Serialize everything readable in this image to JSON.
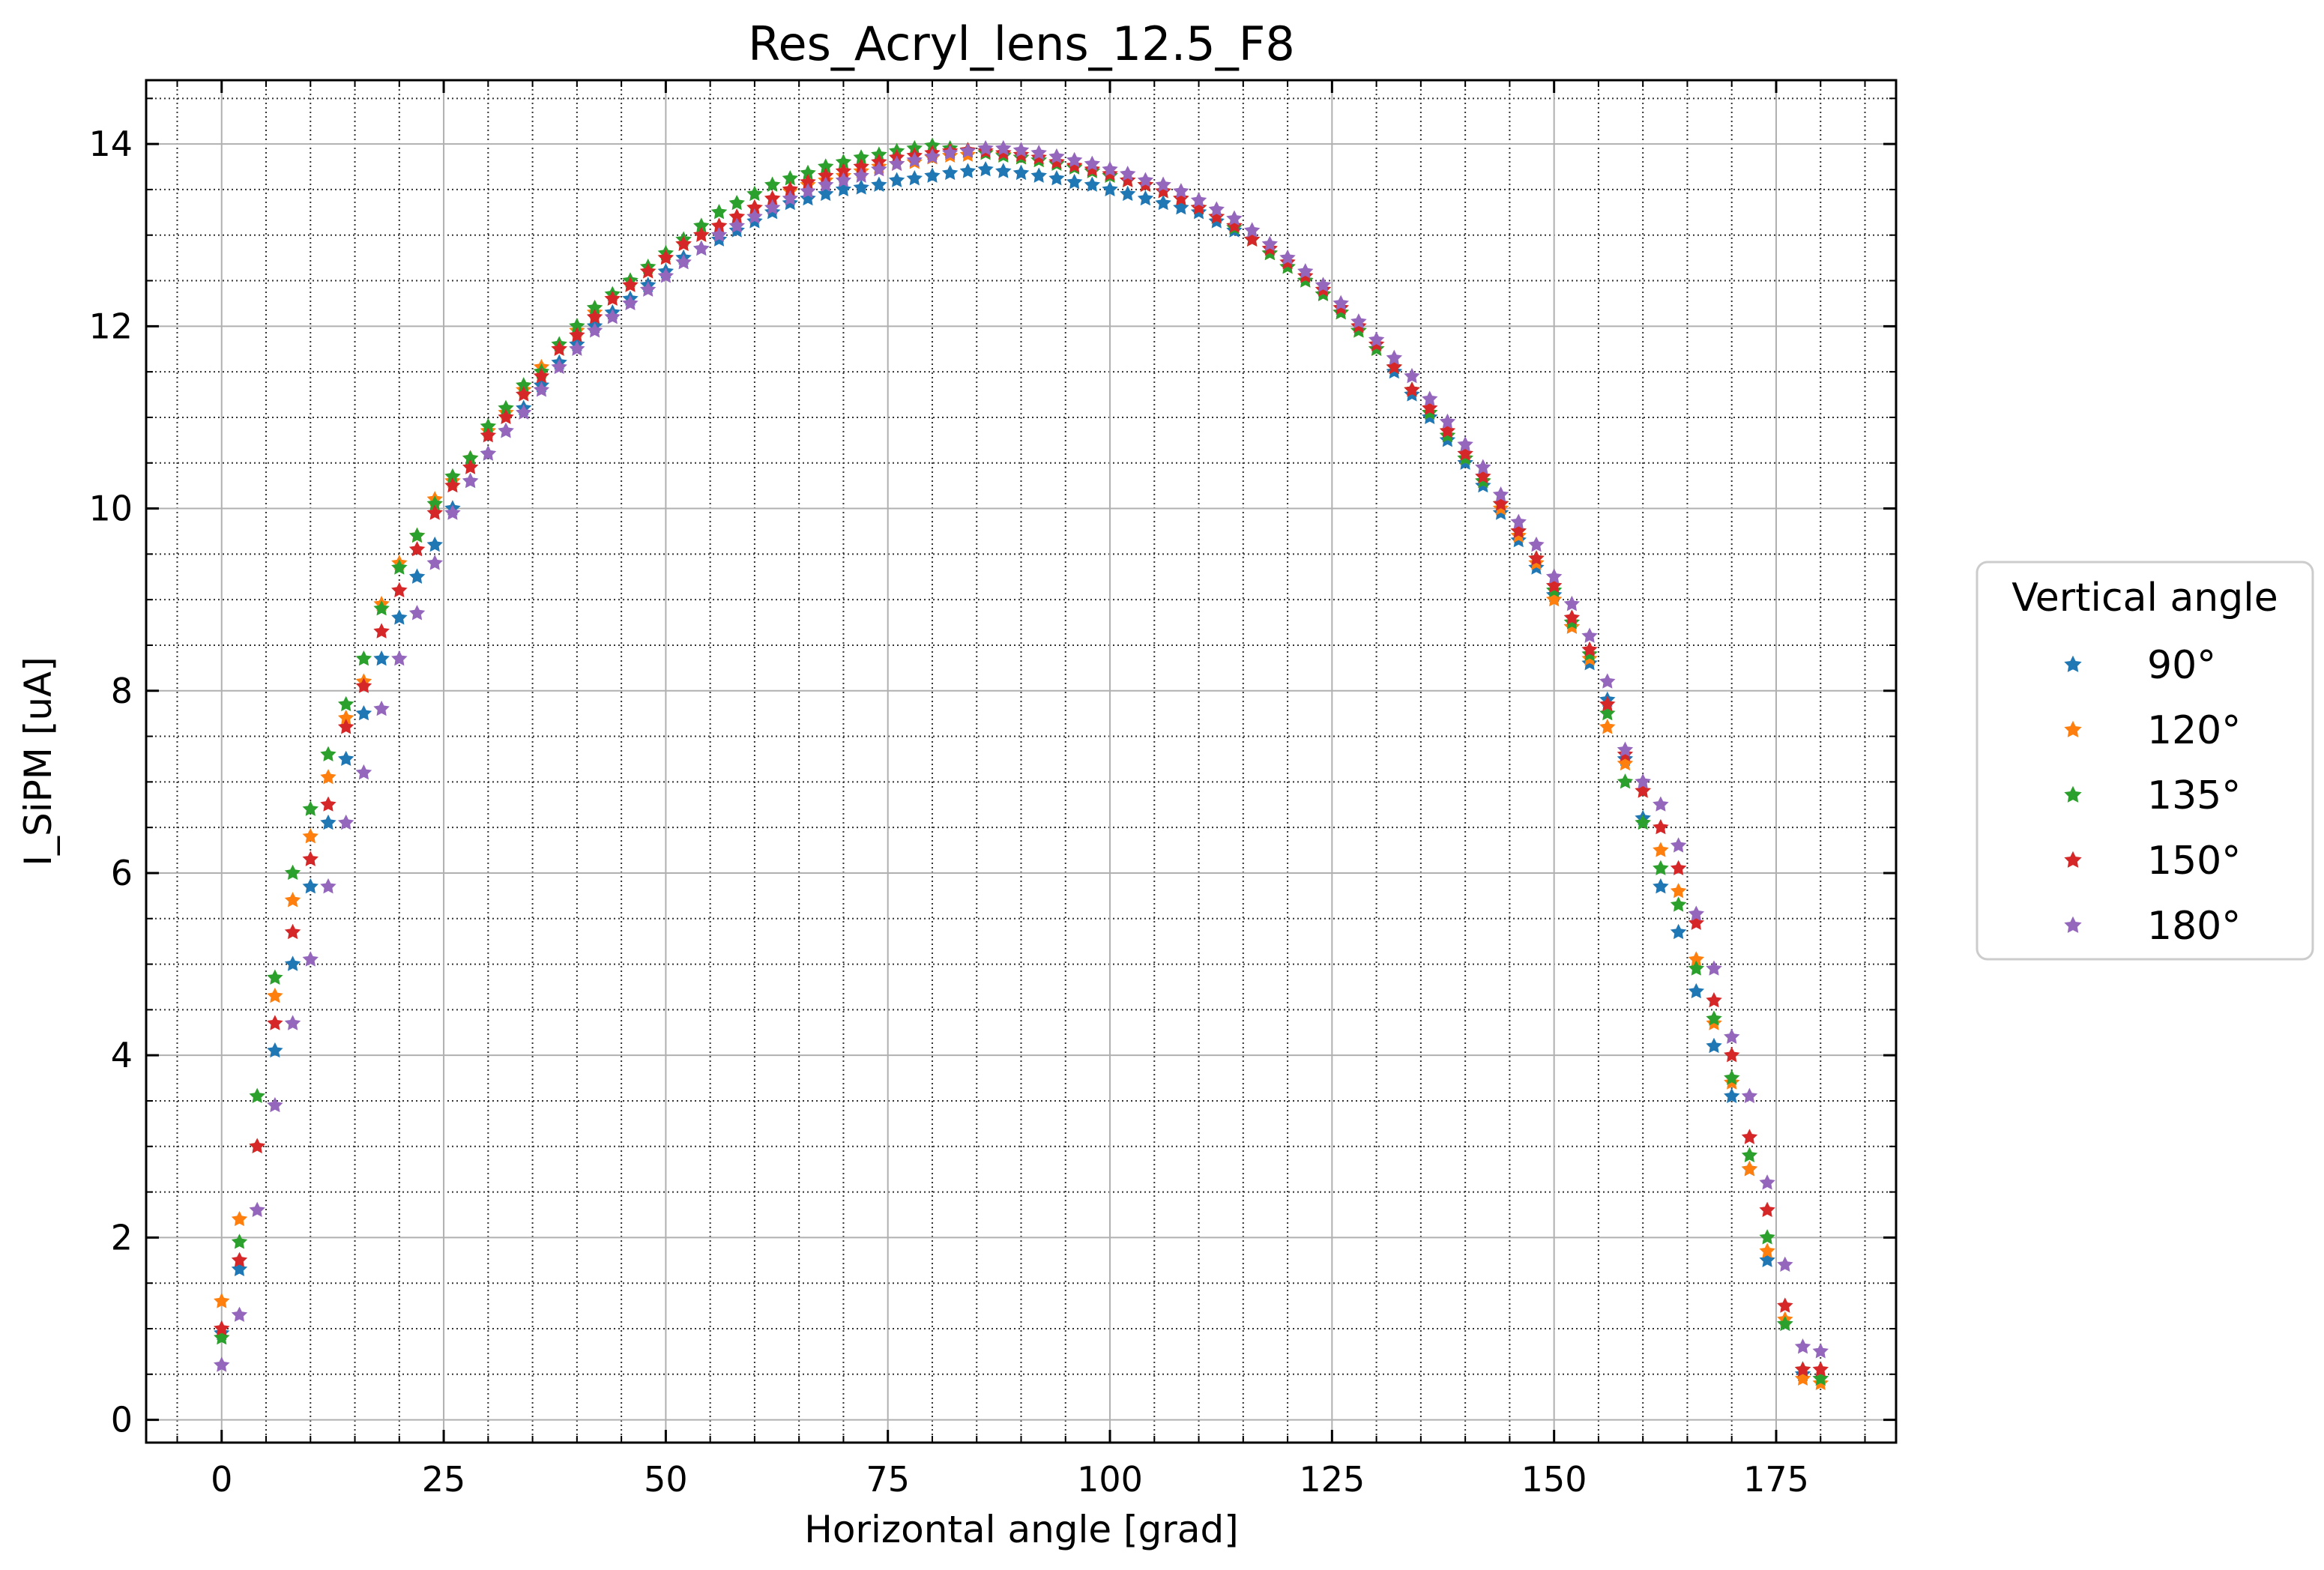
{
  "chart_data": {
    "type": "scatter",
    "title": "Res_Acryl_lens_12.5_F8",
    "xlabel": "Horizontal angle [grad]",
    "ylabel": "I_SiPM [uA]",
    "xlim": [
      -8.5,
      188.5
    ],
    "ylim": [
      -0.25,
      14.7
    ],
    "xticks": [
      0,
      25,
      50,
      75,
      100,
      125,
      150,
      175
    ],
    "yticks": [
      0,
      2,
      4,
      6,
      8,
      10,
      12,
      14
    ],
    "grid": true,
    "legend": {
      "title": "Vertical angle",
      "placement": "center-right"
    },
    "x": [
      0,
      2,
      4,
      6,
      8,
      10,
      12,
      14,
      16,
      18,
      20,
      22,
      24,
      26,
      28,
      30,
      32,
      34,
      36,
      38,
      40,
      42,
      44,
      46,
      48,
      50,
      52,
      54,
      56,
      58,
      60,
      62,
      64,
      66,
      68,
      70,
      72,
      74,
      76,
      78,
      80,
      82,
      84,
      86,
      88,
      90,
      92,
      94,
      96,
      98,
      100,
      102,
      104,
      106,
      108,
      110,
      112,
      114,
      116,
      118,
      120,
      122,
      124,
      126,
      128,
      130,
      132,
      134,
      136,
      138,
      140,
      142,
      144,
      146,
      148,
      150,
      152,
      154,
      156,
      158,
      160,
      162,
      164,
      166,
      168,
      170,
      172,
      174,
      176,
      178,
      180
    ],
    "series": [
      {
        "name": "90°",
        "color": "#1f77b4",
        "values": [
          0.95,
          1.65,
          3.0,
          4.05,
          5.0,
          5.85,
          6.55,
          7.25,
          7.75,
          8.35,
          8.8,
          9.25,
          9.6,
          10.0,
          10.3,
          10.6,
          10.85,
          11.1,
          11.35,
          11.6,
          11.8,
          12.0,
          12.15,
          12.3,
          12.45,
          12.6,
          12.75,
          12.85,
          12.95,
          13.05,
          13.15,
          13.25,
          13.35,
          13.4,
          13.45,
          13.5,
          13.52,
          13.55,
          13.6,
          13.62,
          13.65,
          13.68,
          13.7,
          13.72,
          13.7,
          13.68,
          13.65,
          13.62,
          13.58,
          13.55,
          13.5,
          13.45,
          13.4,
          13.35,
          13.3,
          13.25,
          13.15,
          13.05,
          12.95,
          12.8,
          12.65,
          12.5,
          12.35,
          12.15,
          11.95,
          11.75,
          11.5,
          11.25,
          11.0,
          10.75,
          10.5,
          10.25,
          9.95,
          9.65,
          9.35,
          9.05,
          8.7,
          8.3,
          7.9,
          7.25,
          6.6,
          5.85,
          5.35,
          4.7,
          4.1,
          3.55,
          2.75,
          1.75,
          1.05,
          0.5,
          0.45
        ]
      },
      {
        "name": "120°",
        "color": "#ff7f0e",
        "values": [
          1.3,
          2.2,
          3.0,
          4.65,
          5.7,
          6.4,
          7.05,
          7.7,
          8.1,
          8.95,
          9.4,
          9.7,
          10.1,
          10.3,
          10.55,
          10.85,
          11.05,
          11.3,
          11.55,
          11.75,
          11.95,
          12.15,
          12.3,
          12.45,
          12.6,
          12.75,
          12.9,
          13.0,
          13.1,
          13.2,
          13.3,
          13.4,
          13.48,
          13.55,
          13.6,
          13.65,
          13.7,
          13.75,
          13.78,
          13.8,
          13.85,
          13.87,
          13.88,
          13.9,
          13.88,
          13.85,
          13.82,
          13.8,
          13.75,
          13.7,
          13.65,
          13.6,
          13.55,
          13.48,
          13.4,
          13.3,
          13.2,
          13.1,
          12.95,
          12.8,
          12.65,
          12.5,
          12.35,
          12.15,
          11.95,
          11.75,
          11.55,
          11.3,
          11.05,
          10.8,
          10.55,
          10.3,
          10.0,
          9.7,
          9.4,
          9.0,
          8.7,
          8.35,
          7.6,
          7.2,
          6.9,
          6.25,
          5.8,
          5.05,
          4.35,
          3.7,
          2.75,
          1.85,
          1.1,
          0.45,
          0.4
        ]
      },
      {
        "name": "135°",
        "color": "#2ca02c",
        "values": [
          0.9,
          1.95,
          3.55,
          4.85,
          6.0,
          6.7,
          7.3,
          7.85,
          8.35,
          8.9,
          9.35,
          9.7,
          10.05,
          10.35,
          10.55,
          10.9,
          11.1,
          11.35,
          11.5,
          11.8,
          12.0,
          12.2,
          12.35,
          12.5,
          12.65,
          12.8,
          12.95,
          13.1,
          13.25,
          13.35,
          13.45,
          13.55,
          13.62,
          13.68,
          13.75,
          13.8,
          13.85,
          13.88,
          13.92,
          13.95,
          13.98,
          13.95,
          13.93,
          13.9,
          13.87,
          13.85,
          13.82,
          13.78,
          13.74,
          13.7,
          13.65,
          13.6,
          13.55,
          13.48,
          13.4,
          13.3,
          13.2,
          13.08,
          12.95,
          12.8,
          12.65,
          12.5,
          12.35,
          12.15,
          11.95,
          11.75,
          11.55,
          11.3,
          11.05,
          10.8,
          10.55,
          10.3,
          10.05,
          9.75,
          9.45,
          9.1,
          8.75,
          8.4,
          7.75,
          7.0,
          6.55,
          6.05,
          5.65,
          4.95,
          4.4,
          3.75,
          2.9,
          2.0,
          1.05,
          0.55,
          0.45
        ]
      },
      {
        "name": "150°",
        "color": "#d62728",
        "values": [
          1.0,
          1.75,
          3.0,
          4.35,
          5.35,
          6.15,
          6.75,
          7.6,
          8.05,
          8.65,
          9.1,
          9.55,
          9.95,
          10.25,
          10.45,
          10.8,
          11.0,
          11.25,
          11.45,
          11.75,
          11.9,
          12.1,
          12.3,
          12.45,
          12.6,
          12.75,
          12.9,
          13.0,
          13.1,
          13.2,
          13.3,
          13.4,
          13.5,
          13.58,
          13.65,
          13.7,
          13.75,
          13.8,
          13.85,
          13.87,
          13.9,
          13.92,
          13.93,
          13.92,
          13.9,
          13.88,
          13.85,
          13.8,
          13.76,
          13.72,
          13.67,
          13.6,
          13.55,
          13.48,
          13.4,
          13.3,
          13.2,
          13.1,
          12.95,
          12.85,
          12.7,
          12.55,
          12.4,
          12.2,
          12.0,
          11.8,
          11.55,
          11.3,
          11.1,
          10.85,
          10.6,
          10.35,
          10.05,
          9.75,
          9.45,
          9.15,
          8.8,
          8.45,
          7.85,
          7.3,
          6.9,
          6.5,
          6.05,
          5.45,
          4.6,
          4.0,
          3.1,
          2.3,
          1.25,
          0.55,
          0.55
        ]
      },
      {
        "name": "180°",
        "color": "#9467bd",
        "values": [
          0.6,
          1.15,
          2.3,
          3.45,
          4.35,
          5.05,
          5.85,
          6.55,
          7.1,
          7.8,
          8.35,
          8.85,
          9.4,
          9.95,
          10.3,
          10.6,
          10.85,
          11.05,
          11.3,
          11.55,
          11.75,
          11.95,
          12.1,
          12.25,
          12.4,
          12.55,
          12.7,
          12.85,
          13.0,
          13.1,
          13.2,
          13.3,
          13.4,
          13.48,
          13.55,
          13.6,
          13.65,
          13.72,
          13.78,
          13.82,
          13.86,
          13.9,
          13.92,
          13.95,
          13.95,
          13.93,
          13.9,
          13.86,
          13.82,
          13.78,
          13.72,
          13.67,
          13.6,
          13.55,
          13.48,
          13.38,
          13.28,
          13.18,
          13.05,
          12.9,
          12.75,
          12.6,
          12.45,
          12.25,
          12.05,
          11.85,
          11.65,
          11.45,
          11.2,
          10.95,
          10.7,
          10.45,
          10.15,
          9.85,
          9.6,
          9.25,
          8.95,
          8.6,
          8.1,
          7.35,
          7.0,
          6.75,
          6.3,
          5.55,
          4.95,
          4.2,
          3.55,
          2.6,
          1.7,
          0.8,
          0.75
        ]
      }
    ]
  }
}
